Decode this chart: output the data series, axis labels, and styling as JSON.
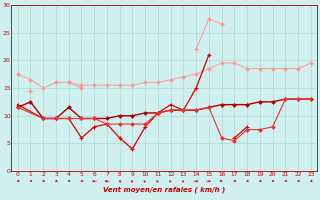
{
  "x": [
    0,
    1,
    2,
    3,
    4,
    5,
    6,
    7,
    8,
    9,
    10,
    11,
    12,
    13,
    14,
    15,
    16,
    17,
    18,
    19,
    20,
    21,
    22,
    23
  ],
  "line1": [
    17.5,
    16.5,
    15.0,
    16.0,
    16.0,
    15.5,
    15.5,
    15.5,
    15.5,
    15.5,
    16.0,
    16.0,
    16.5,
    17.0,
    17.5,
    18.5,
    19.5,
    19.5,
    18.5,
    18.5,
    18.5,
    18.5,
    18.5,
    19.5
  ],
  "line2": [
    null,
    14.5,
    null,
    null,
    16.0,
    15.0,
    null,
    null,
    null,
    null,
    null,
    null,
    null,
    null,
    22.0,
    27.5,
    26.5,
    null,
    null,
    null,
    null,
    null,
    null,
    null
  ],
  "line3_a": {
    "x": [
      0,
      2,
      3,
      4,
      5,
      6,
      7,
      8,
      9,
      10,
      11,
      12,
      13,
      14,
      15
    ],
    "y": [
      12.0,
      9.5,
      9.5,
      9.5,
      6.0,
      8.0,
      8.5,
      6.0,
      4.0,
      8.0,
      10.5,
      12.0,
      11.0,
      15.0,
      21.0
    ]
  },
  "line3_b": {
    "x": [
      17,
      18
    ],
    "y": [
      6.0,
      8.0
    ]
  },
  "line4": [
    11.5,
    12.5,
    9.5,
    9.5,
    11.5,
    9.5,
    9.5,
    9.5,
    10.0,
    10.0,
    10.5,
    10.5,
    11.0,
    11.0,
    11.0,
    11.5,
    12.0,
    12.0,
    12.0,
    12.5,
    12.5,
    13.0,
    13.0,
    13.0
  ],
  "line5_a": {
    "x": [
      0,
      2,
      3,
      4,
      5,
      6,
      7,
      8,
      9,
      10,
      11,
      12,
      13,
      14,
      15,
      16,
      17,
      18,
      19,
      20,
      21,
      22,
      23
    ],
    "y": [
      11.5,
      9.5,
      9.5,
      9.5,
      9.5,
      9.5,
      8.5,
      8.5,
      8.5,
      8.5,
      10.5,
      11.0,
      11.0,
      11.0,
      11.5,
      6.0,
      5.5,
      7.5,
      7.5,
      8.0,
      13.0,
      13.0,
      13.0
    ]
  },
  "xlim": [
    0,
    23
  ],
  "ylim": [
    0,
    30
  ],
  "yticks": [
    0,
    5,
    10,
    15,
    20,
    25,
    30
  ],
  "xticks": [
    0,
    1,
    2,
    3,
    4,
    5,
    6,
    7,
    8,
    9,
    10,
    11,
    12,
    13,
    14,
    15,
    16,
    17,
    18,
    19,
    20,
    21,
    22,
    23
  ],
  "xlabel": "Vent moyen/en rafales ( km/h )",
  "bg_color": "#cff0ee",
  "grid_color": "#b0d8d0",
  "line1_color": "#ff9999",
  "line2_color": "#ff9999",
  "line3_color": "#dd0000",
  "line4_color": "#aa0000",
  "line5_color": "#ee3333",
  "wind_dirs": [
    225,
    225,
    225,
    225,
    225,
    225,
    270,
    270,
    315,
    45,
    45,
    45,
    45,
    45,
    90,
    90,
    135,
    225,
    225,
    225,
    225,
    225,
    225,
    225
  ]
}
